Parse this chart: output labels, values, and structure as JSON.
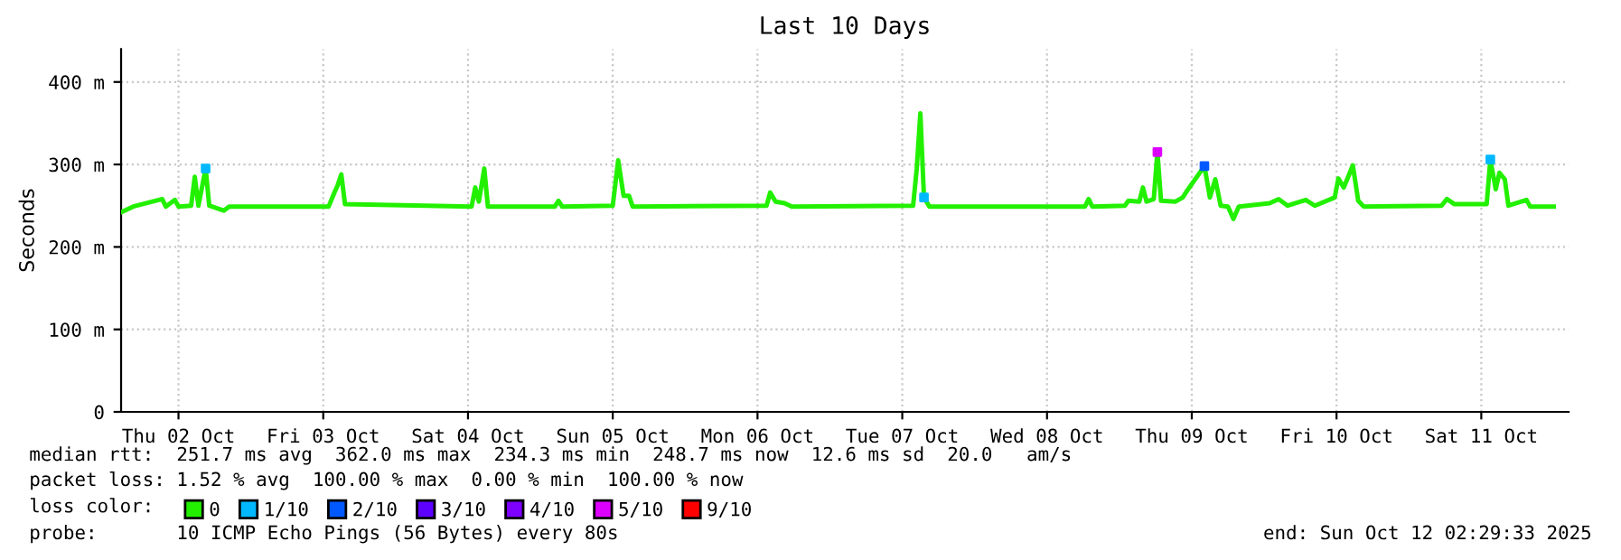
{
  "chart_data": {
    "type": "line",
    "title": "Last 10 Days",
    "ylabel": "Seconds",
    "legend_title": "loss color:",
    "legend": "bottom",
    "grid": true,
    "line_style": "solid",
    "xlim": [
      "2025-10-02T02:29",
      "2025-10-12T02:29"
    ],
    "xticks": [
      {
        "value": "2025-10-02T12:00",
        "label": "Thu 02 Oct"
      },
      {
        "value": "2025-10-03T12:00",
        "label": "Fri 03 Oct"
      },
      {
        "value": "2025-10-04T12:00",
        "label": "Sat 04 Oct"
      },
      {
        "value": "2025-10-05T12:00",
        "label": "Sun 05 Oct"
      },
      {
        "value": "2025-10-06T12:00",
        "label": "Mon 06 Oct"
      },
      {
        "value": "2025-10-07T12:00",
        "label": "Tue 07 Oct"
      },
      {
        "value": "2025-10-08T12:00",
        "label": "Wed 08 Oct"
      },
      {
        "value": "2025-10-09T12:00",
        "label": "Thu 09 Oct"
      },
      {
        "value": "2025-10-10T12:00",
        "label": "Fri 10 Oct"
      },
      {
        "value": "2025-10-11T12:00",
        "label": "Sat 11 Oct"
      }
    ],
    "ylim": [
      0,
      440
    ],
    "yticks": [
      0,
      {
        "value": 100,
        "label": "100 m"
      },
      {
        "value": 200,
        "label": "200 m"
      },
      {
        "value": 300,
        "label": "300 m"
      },
      {
        "value": 400,
        "label": "400 m"
      }
    ],
    "x": [
      "2025-10-02T02:30",
      "2025-10-02T04:30",
      "2025-10-02T09:18",
      "2025-10-02T09:54",
      "2025-10-02T11:24",
      "2025-10-02T12:00",
      "2025-10-02T14:06",
      "2025-10-02T14:42",
      "2025-10-02T15:18",
      "2025-10-02T16:30",
      "2025-10-02T17:06",
      "2025-10-02T19:30",
      "2025-10-02T20:24",
      "2025-10-03T12:54",
      "2025-10-03T13:48",
      "2025-10-03T14:24",
      "2025-10-03T15:00",
      "2025-10-03T15:36",
      "2025-10-04T12:36",
      "2025-10-04T13:12",
      "2025-10-04T13:48",
      "2025-10-04T14:42",
      "2025-10-04T15:18",
      "2025-10-05T02:24",
      "2025-10-05T03:00",
      "2025-10-05T03:36",
      "2025-10-05T12:00",
      "2025-10-05T12:54",
      "2025-10-05T13:48",
      "2025-10-05T14:42",
      "2025-10-05T15:18",
      "2025-10-06T13:30",
      "2025-10-06T14:06",
      "2025-10-06T15:00",
      "2025-10-06T16:30",
      "2025-10-06T17:42",
      "2025-10-07T13:48",
      "2025-10-07T14:24",
      "2025-10-07T15:00",
      "2025-10-07T15:36",
      "2025-10-07T16:30",
      "2025-10-08T18:18",
      "2025-10-08T18:54",
      "2025-10-08T19:30",
      "2025-10-09T00:54",
      "2025-10-09T01:30",
      "2025-10-09T03:18",
      "2025-10-09T03:54",
      "2025-10-09T04:30",
      "2025-10-09T05:42",
      "2025-10-09T06:18",
      "2025-10-09T06:54",
      "2025-10-09T09:18",
      "2025-10-09T10:30",
      "2025-10-09T11:24",
      "2025-10-09T14:06",
      "2025-10-09T15:00",
      "2025-10-09T15:54",
      "2025-10-09T16:48",
      "2025-10-09T18:00",
      "2025-10-09T18:54",
      "2025-10-09T19:48",
      "2025-10-10T00:54",
      "2025-10-10T02:24",
      "2025-10-10T03:54",
      "2025-10-10T06:54",
      "2025-10-10T08:24",
      "2025-10-10T11:42",
      "2025-10-10T12:18",
      "2025-10-10T13:12",
      "2025-10-10T14:06",
      "2025-10-10T14:42",
      "2025-10-10T15:36",
      "2025-10-10T16:30",
      "2025-10-11T05:24",
      "2025-10-11T06:18",
      "2025-10-11T07:30",
      "2025-10-11T12:54",
      "2025-10-11T13:30",
      "2025-10-11T14:24",
      "2025-10-11T15:00",
      "2025-10-11T15:54",
      "2025-10-11T16:30",
      "2025-10-11T19:30",
      "2025-10-11T20:06",
      "2025-10-12T00:00"
    ],
    "series": [
      {
        "name": "0",
        "color": "#22f000",
        "values": [
          242,
          249,
          258,
          249,
          257,
          249,
          250,
          285,
          250,
          295,
          250,
          244,
          249,
          249,
          265,
          275,
          288,
          252,
          249,
          272,
          255,
          295,
          249,
          249,
          256,
          249,
          250,
          305,
          262,
          262,
          249,
          250,
          266,
          255,
          253,
          249,
          250,
          295,
          362,
          260,
          249,
          249,
          258,
          249,
          250,
          256,
          255,
          272,
          255,
          258,
          315,
          256,
          255,
          260,
          270,
          298,
          260,
          282,
          250,
          249,
          234,
          249,
          253,
          258,
          250,
          257,
          250,
          260,
          283,
          272,
          288,
          299,
          256,
          249,
          250,
          258,
          252,
          252,
          306,
          270,
          290,
          282,
          250,
          257,
          249,
          249
        ]
      },
      {
        "name": "1/10",
        "color": "#00b8ff",
        "type": "scatter",
        "x": [
          "2025-10-02T16:30",
          "2025-10-07T15:36",
          "2025-10-11T13:30"
        ],
        "values": [
          295,
          260,
          306
        ]
      },
      {
        "name": "2/10",
        "color": "#0059ff",
        "type": "scatter",
        "x": [
          "2025-10-09T14:06"
        ],
        "values": [
          298
        ]
      },
      {
        "name": "3/10",
        "color": "#5e00ff",
        "type": "scatter",
        "values": [
          null,
          null,
          null,
          null,
          null,
          null,
          null,
          null,
          null,
          null,
          null,
          null,
          null,
          null,
          null,
          null,
          null,
          null,
          null,
          null,
          null,
          null,
          null,
          null,
          null,
          null,
          null,
          null,
          null,
          null,
          null,
          null,
          null,
          null,
          null,
          null,
          null,
          null,
          null,
          null,
          null,
          null,
          null,
          null,
          null,
          null,
          null,
          null,
          null,
          null,
          null,
          null,
          null,
          null,
          null,
          null,
          null,
          null,
          null,
          null,
          null,
          null,
          null,
          null,
          null,
          null,
          null,
          null,
          null,
          null,
          null,
          null,
          null,
          null,
          null,
          null,
          null,
          null,
          null,
          null,
          null,
          null,
          null,
          null,
          null,
          null
        ]
      },
      {
        "name": "4/10",
        "color": "#7e00ff",
        "type": "scatter",
        "values": [
          null,
          null,
          null,
          null,
          null,
          null,
          null,
          null,
          null,
          null,
          null,
          null,
          null,
          null,
          null,
          null,
          null,
          null,
          null,
          null,
          null,
          null,
          null,
          null,
          null,
          null,
          null,
          null,
          null,
          null,
          null,
          null,
          null,
          null,
          null,
          null,
          null,
          null,
          null,
          null,
          null,
          null,
          null,
          null,
          null,
          null,
          null,
          null,
          null,
          null,
          null,
          null,
          null,
          null,
          null,
          null,
          null,
          null,
          null,
          null,
          null,
          null,
          null,
          null,
          null,
          null,
          null,
          null,
          null,
          null,
          null,
          null,
          null,
          null,
          null,
          null,
          null,
          null,
          null,
          null,
          null,
          null,
          null,
          null,
          null,
          null
        ]
      },
      {
        "name": "5/10",
        "color": "#dd00ff",
        "type": "scatter",
        "x": [
          "2025-10-09T06:18"
        ],
        "values": [
          315
        ]
      },
      {
        "name": "9/10",
        "color": "#ff0000",
        "type": "scatter",
        "values": [
          null,
          null,
          null,
          null,
          null,
          null,
          null,
          null,
          null,
          null,
          null,
          null,
          null,
          null,
          null,
          null,
          null,
          null,
          null,
          null,
          null,
          null,
          null,
          null,
          null,
          null,
          null,
          null,
          null,
          null,
          null,
          null,
          null,
          null,
          null,
          null,
          null,
          null,
          null,
          null,
          null,
          null,
          null,
          null,
          null,
          null,
          null,
          null,
          null,
          null,
          null,
          null,
          null,
          null,
          null,
          null,
          null,
          null,
          null,
          null,
          null,
          null,
          null,
          null,
          null,
          null,
          null,
          null,
          null,
          null,
          null,
          null,
          null,
          null,
          null,
          null,
          null,
          null,
          null,
          null,
          null,
          null,
          null,
          null,
          null,
          null
        ]
      }
    ],
    "annotations": [
      "median rtt:  251.7 ms avg  362.0 ms max  234.3 ms min  248.7 ms now  12.6 ms sd  20.0   am/s",
      "packet loss: 1.52 % avg  100.00 % max  0.00 % min  100.00 % now",
      "probe:       10 ICMP Echo Pings (56 Bytes) every 80s",
      "end: Sun Oct 12 02:29:33 2025"
    ]
  }
}
